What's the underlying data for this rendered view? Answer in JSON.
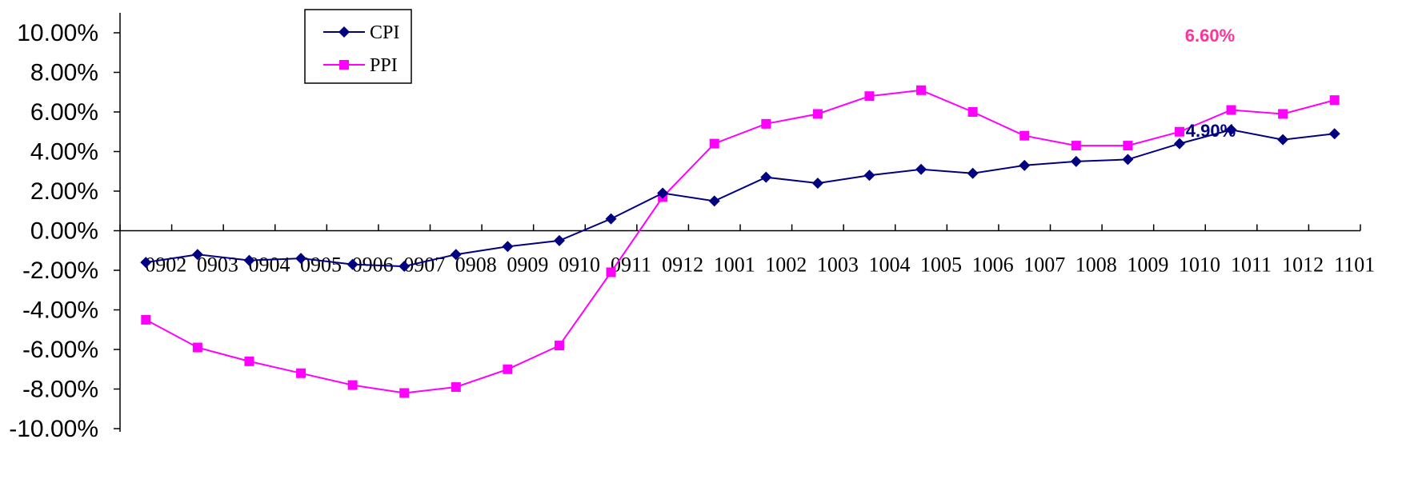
{
  "chart_data": {
    "type": "line",
    "title": "",
    "xlabel": "",
    "ylabel": "",
    "ylim": [
      -10,
      10
    ],
    "y_ticks": [
      "10.00%",
      "8.00%",
      "6.00%",
      "4.00%",
      "2.00%",
      "0.00%",
      "-2.00%",
      "-4.00%",
      "-6.00%",
      "-8.00%",
      "-10.00%"
    ],
    "categories": [
      "0902",
      "0903",
      "0904",
      "0905",
      "0906",
      "0907",
      "0908",
      "0909",
      "0910",
      "0911",
      "0912",
      "1001",
      "1002",
      "1003",
      "1004",
      "1005",
      "1006",
      "1007",
      "1008",
      "1009",
      "1010",
      "1011",
      "1012",
      "1101"
    ],
    "legend_position": "top-left",
    "grid": false,
    "series": [
      {
        "name": "CPI",
        "color": "#000080",
        "marker": "diamond",
        "values": [
          -1.6,
          -1.2,
          -1.5,
          -1.4,
          -1.7,
          -1.8,
          -1.2,
          -0.8,
          -0.5,
          0.6,
          1.9,
          1.5,
          2.7,
          2.4,
          2.8,
          3.1,
          2.9,
          3.3,
          3.5,
          3.6,
          4.4,
          5.1,
          4.6,
          4.9
        ]
      },
      {
        "name": "PPI",
        "color": "#FF00FF",
        "marker": "square",
        "values": [
          -4.5,
          -5.9,
          -6.6,
          -7.2,
          -7.8,
          -8.2,
          -7.9,
          -7.0,
          -5.8,
          -2.1,
          1.7,
          4.4,
          5.4,
          5.9,
          6.8,
          7.1,
          6.0,
          4.8,
          4.3,
          4.3,
          5.0,
          6.1,
          5.9,
          6.6
        ]
      }
    ],
    "annotations": [
      {
        "series": "PPI",
        "text": "6.60%",
        "color": "#FF3399"
      },
      {
        "series": "CPI",
        "text": "4.90%",
        "color": "#000080"
      }
    ]
  }
}
